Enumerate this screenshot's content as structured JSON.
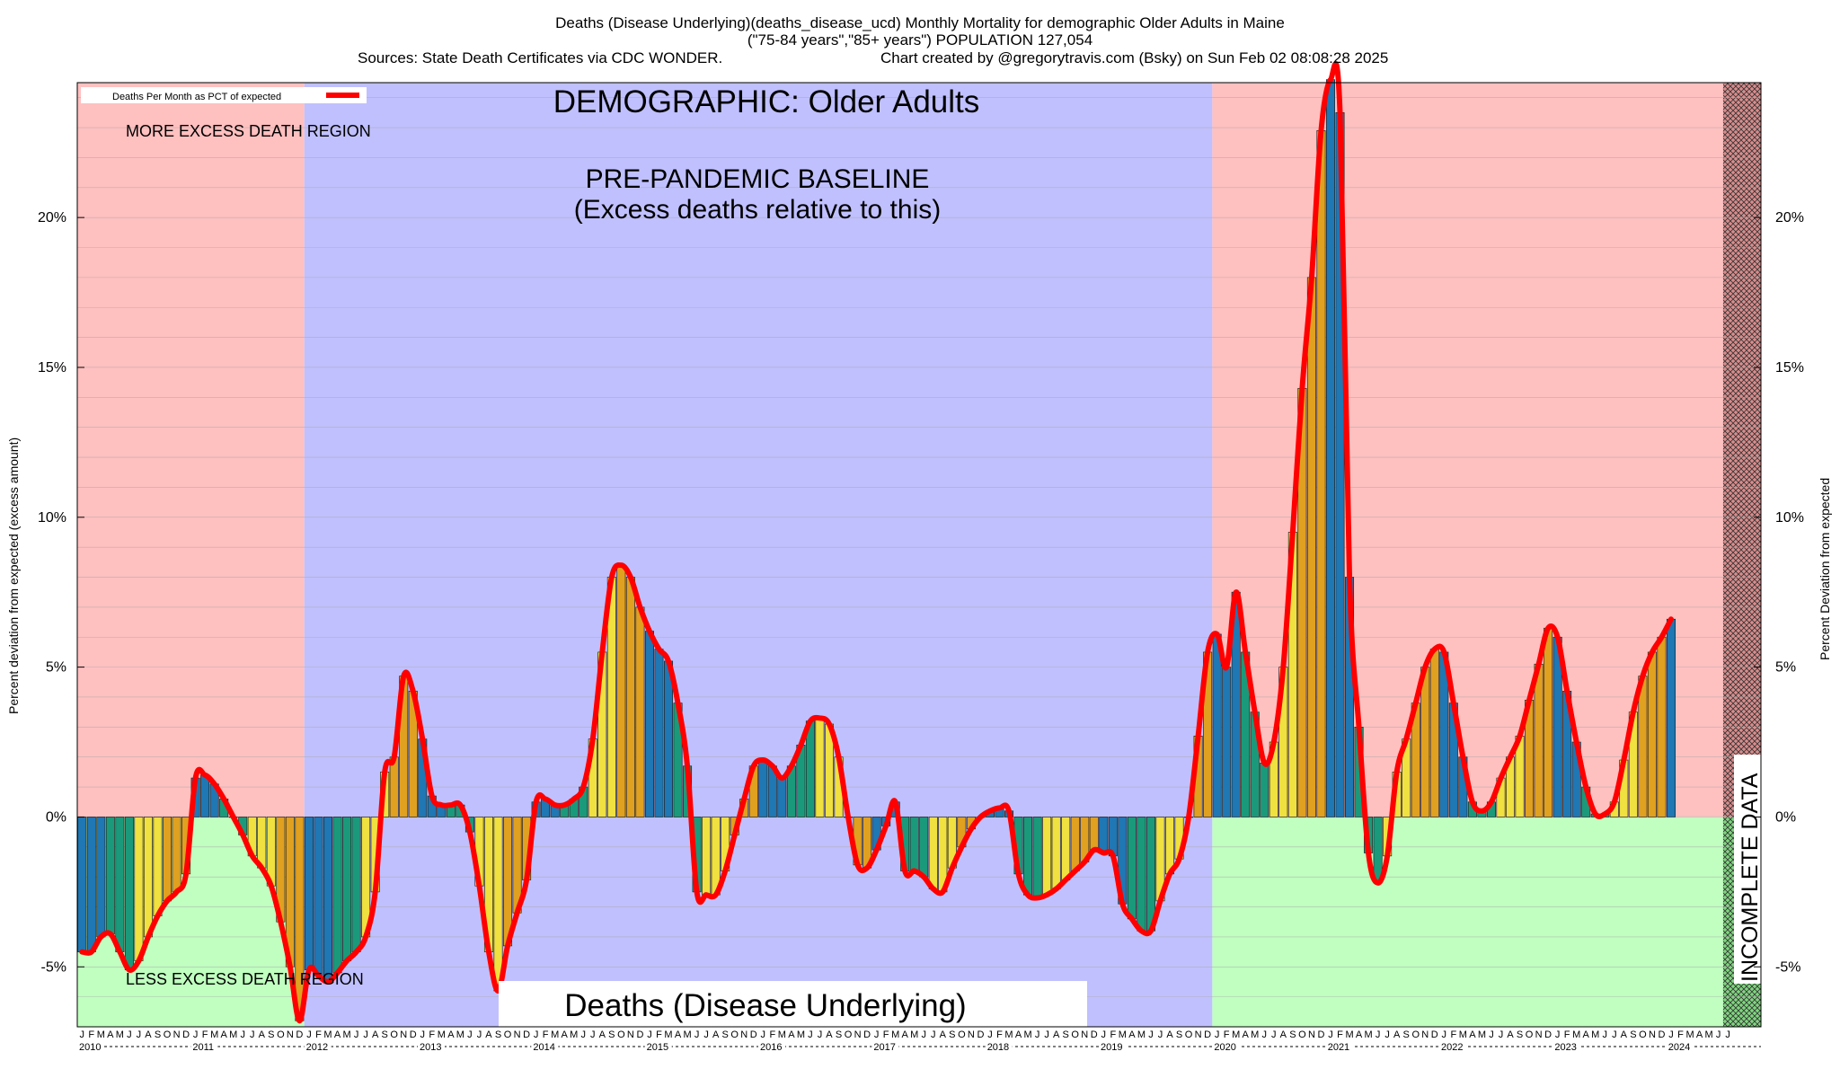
{
  "chart_data": {
    "type": "bar",
    "title_lines": [
      "Deaths (Disease Underlying)(deaths_disease_ucd) Monthly Mortality for demographic Older Adults in Maine",
      "(\"75-84 years\",\"85+ years\") POPULATION 127,054"
    ],
    "sources_text": "Sources: State Death Certificates via CDC WONDER.",
    "credit_text": "Chart created by @gregorytravis.com (Bsky) on Sun Feb 02 08:08:28 2025",
    "ylabel_left": "Percent deviation from expected (excess amount)",
    "ylabel_right": "Percent Deviation from expected",
    "ylim": [
      -7,
      24.5
    ],
    "yticks": [
      -5,
      0,
      5,
      10,
      15,
      20
    ],
    "ytick_labels": [
      "-5%",
      "0%",
      "5%",
      "10%",
      "15%",
      "20%"
    ],
    "grid": "horizontal",
    "legend": {
      "label": "Deaths Per Month as PCT of expected",
      "position": "top-left",
      "line_color": "#ff0000"
    },
    "annotations": {
      "demographic": "DEMOGRAPHIC: Older Adults",
      "baseline_1": "PRE-PANDEMIC BASELINE",
      "baseline_2": "(Excess deaths relative to this)",
      "more_region": "MORE EXCESS DEATH REGION",
      "less_region": "LESS EXCESS DEATH REGION",
      "bottom_label": "Deaths (Disease Underlying)",
      "incomplete": "INCOMPLETE DATA"
    },
    "regions": [
      {
        "name": "pre-baseline",
        "start_month": 0,
        "end_month": 24,
        "upper_color": "#ffc0c0",
        "lower_color": "#c0ffc0"
      },
      {
        "name": "pre-pandemic baseline",
        "start_month": 24,
        "end_month": 120,
        "color": "#c0c0ff"
      },
      {
        "name": "pandemic and after",
        "start_month": 120,
        "end_month": 174,
        "upper_color": "#ffc0c0",
        "lower_color": "#c0ffc0"
      },
      {
        "name": "incomplete data",
        "start_month": 174,
        "end_month": 178,
        "color": "#dd9999"
      }
    ],
    "month_letters": [
      "J",
      "F",
      "M",
      "A",
      "M",
      "J",
      "J",
      "A",
      "S",
      "O",
      "N",
      "D"
    ],
    "years": [
      "2010",
      "2011",
      "2012",
      "2013",
      "2014",
      "2015",
      "2016",
      "2017",
      "2018",
      "2019",
      "2020",
      "2021",
      "2022",
      "2023",
      "2024"
    ],
    "start": "2010-01",
    "bar_colors": [
      "#1f77b4",
      "#1f77b4",
      "#1f77b4",
      "#1a9a7a",
      "#1a9a7a",
      "#1a9a7a",
      "#f0e040",
      "#f0e040",
      "#f0e040",
      "#e0a020",
      "#e0a020",
      "#e0a020"
    ],
    "values": [
      -4.5,
      -4.5,
      -4.0,
      -3.9,
      -4.5,
      -5.1,
      -4.8,
      -4.0,
      -3.3,
      -2.8,
      -2.5,
      -1.9,
      1.3,
      1.4,
      1.1,
      0.6,
      0.0,
      -0.6,
      -1.3,
      -1.7,
      -2.3,
      -3.5,
      -5.0,
      -6.8,
      -5.1,
      -5.3,
      -5.5,
      -5.2,
      -4.8,
      -4.5,
      -4.0,
      -2.5,
      1.5,
      2.0,
      4.7,
      4.2,
      2.6,
      0.7,
      0.4,
      0.4,
      0.4,
      -0.5,
      -2.3,
      -4.5,
      -5.8,
      -4.3,
      -3.2,
      -2.1,
      0.5,
      0.6,
      0.4,
      0.4,
      0.6,
      1.0,
      2.6,
      5.5,
      8.0,
      8.4,
      8.0,
      7.0,
      6.2,
      5.6,
      5.2,
      3.8,
      1.7,
      -2.5,
      -2.6,
      -2.6,
      -1.8,
      -0.6,
      0.6,
      1.7,
      1.9,
      1.7,
      1.3,
      1.7,
      2.4,
      3.2,
      3.3,
      3.1,
      2.0,
      0.0,
      -1.6,
      -1.7,
      -1.1,
      -0.3,
      0.5,
      -1.8,
      -1.8,
      -2.0,
      -2.4,
      -2.5,
      -1.7,
      -1.0,
      -0.4,
      0.0,
      0.2,
      0.3,
      0.2,
      -1.9,
      -2.6,
      -2.7,
      -2.6,
      -2.4,
      -2.1,
      -1.8,
      -1.5,
      -1.1,
      -1.2,
      -1.3,
      -2.9,
      -3.4,
      -3.8,
      -3.8,
      -2.8,
      -1.9,
      -1.4,
      0.0,
      2.7,
      5.5,
      6.1,
      5.0,
      7.5,
      5.5,
      3.5,
      1.8,
      2.5,
      5.0,
      9.5,
      14.3,
      18.0,
      22.9,
      24.6,
      23.5,
      8.0,
      3.0,
      -1.2,
      -2.2,
      -1.3,
      1.5,
      2.6,
      3.8,
      5.0,
      5.6,
      5.5,
      3.8,
      2.0,
      0.5,
      0.2,
      0.5,
      1.3,
      2.0,
      2.7,
      3.9,
      5.1,
      6.3,
      6.0,
      4.2,
      2.5,
      1.0,
      0.1,
      0.1,
      0.5,
      1.9,
      3.5,
      4.7,
      5.5,
      6.0,
      6.6
    ]
  }
}
